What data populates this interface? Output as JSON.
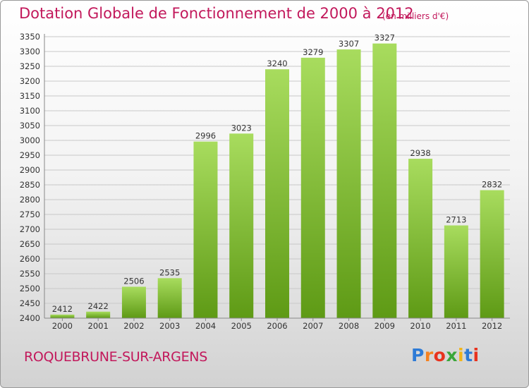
{
  "title": "Dotation Globale de Fonctionnement de 2000 à 2012",
  "unit_note": "(en milliers d'€)",
  "commune": "ROQUEBRUNE-SUR-ARGENS",
  "logo": {
    "text": "Proxiti",
    "letter_colors": [
      "#2e7bd6",
      "#f58220",
      "#e8321e",
      "#3aa63a",
      "#f2b51a",
      "#2e7bd6",
      "#e8321e"
    ]
  },
  "colors": {
    "title": "#c2185b",
    "bar_light": "#a8dc5e",
    "bar_dark": "#5e9a15",
    "grid": "#c8c8c8",
    "axis": "#888888"
  },
  "chart_data": {
    "type": "bar",
    "categories": [
      "2000",
      "2001",
      "2002",
      "2003",
      "2004",
      "2005",
      "2006",
      "2007",
      "2008",
      "2009",
      "2010",
      "2011",
      "2012"
    ],
    "values": [
      2412,
      2422,
      2506,
      2535,
      2996,
      3023,
      3240,
      3279,
      3307,
      3327,
      2938,
      2713,
      2832
    ],
    "title": "Dotation Globale de Fonctionnement de 2000 à 2012",
    "ylim": [
      2400,
      3350
    ],
    "yticks": [
      2400,
      2450,
      2500,
      2550,
      2600,
      2650,
      2700,
      2750,
      2800,
      2850,
      2900,
      2950,
      3000,
      3050,
      3100,
      3150,
      3200,
      3250,
      3300,
      3350
    ],
    "grid": true,
    "data_labels": true
  }
}
